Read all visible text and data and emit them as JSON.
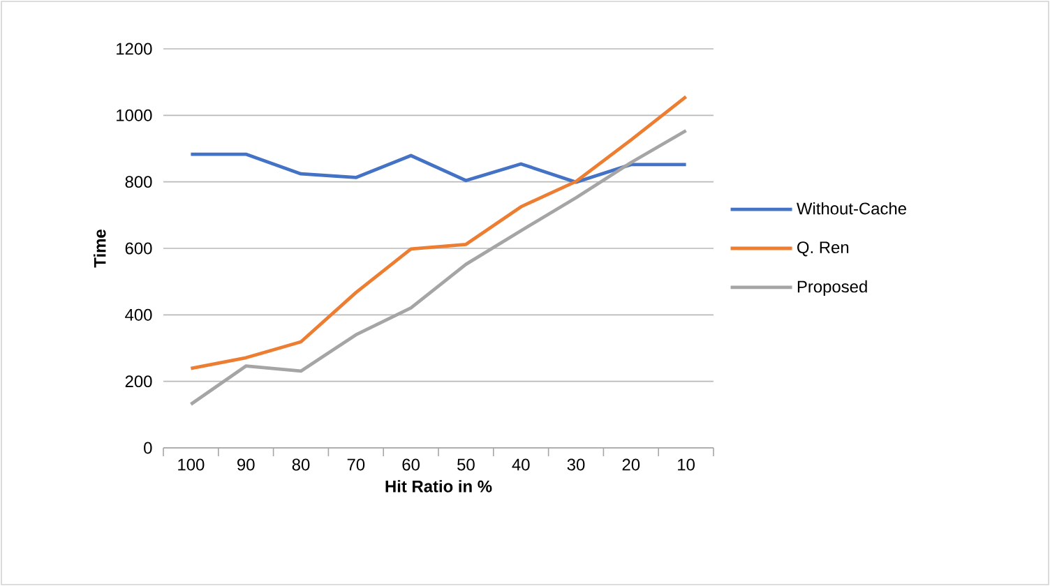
{
  "chart_data": {
    "type": "line",
    "xlabel": "Hit Ratio in %",
    "ylabel": "Time",
    "categories": [
      "100",
      "90",
      "80",
      "70",
      "60",
      "50",
      "40",
      "30",
      "20",
      "10"
    ],
    "series": [
      {
        "name": "Without-Cache",
        "color": "#4472c4",
        "values": [
          883,
          883,
          824,
          813,
          879,
          804,
          854,
          799,
          852,
          852
        ]
      },
      {
        "name": "Q. Ren",
        "color": "#ed7d31",
        "values": [
          239,
          271,
          319,
          467,
          598,
          612,
          725,
          801,
          926,
          1056
        ]
      },
      {
        "name": "Proposed",
        "color": "#a5a5a5",
        "values": [
          131,
          246,
          231,
          340,
          421,
          552,
          653,
          752,
          858,
          954
        ]
      }
    ],
    "ylim": [
      0,
      1200
    ],
    "yticks": [
      0,
      200,
      400,
      600,
      800,
      1000,
      1200
    ],
    "grid": "y",
    "legend": "right",
    "marker": "none",
    "line_style": "solid"
  }
}
